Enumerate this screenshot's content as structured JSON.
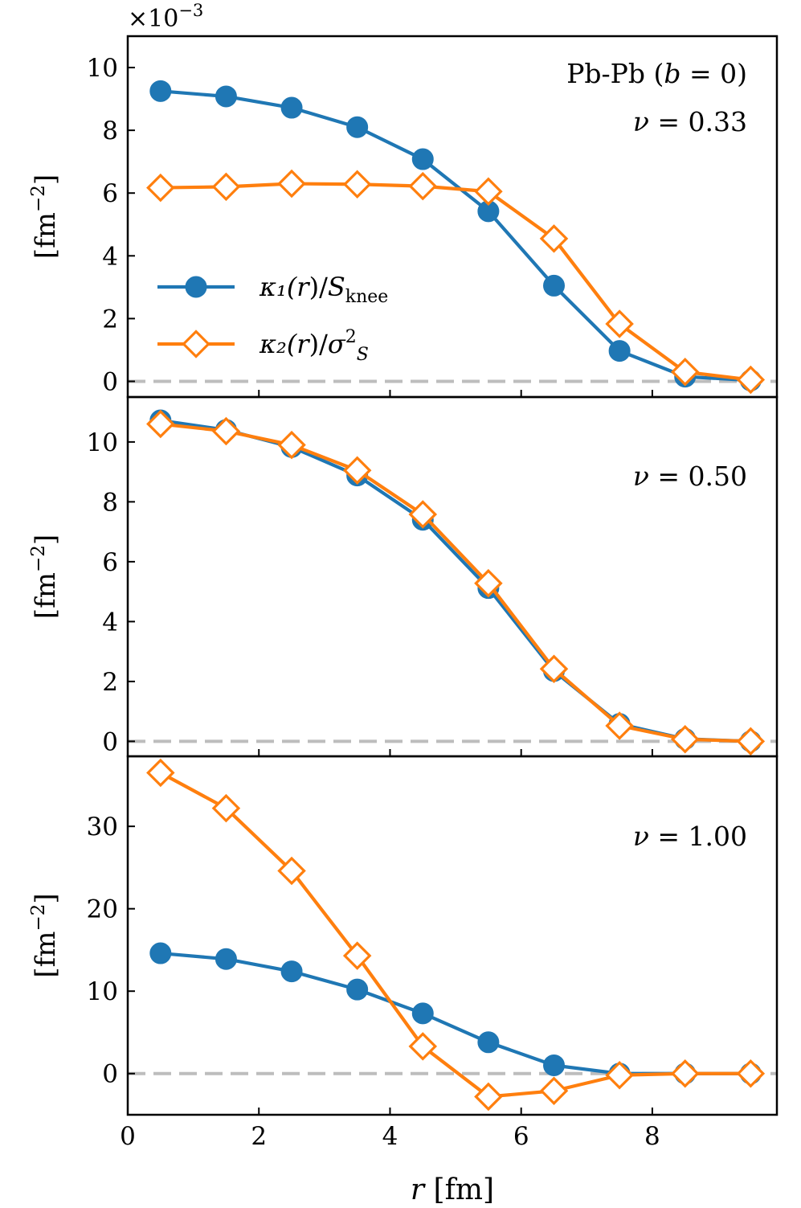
{
  "chart_data": {
    "type": "line",
    "xlabel": "r [fm]",
    "x_tick_labels": [
      "0",
      "2",
      "4",
      "6",
      "8"
    ],
    "xlim": [
      0,
      9.9
    ],
    "legend": {
      "placement": "center-left (top panel)",
      "entries": [
        {
          "series": "k1",
          "label": "κ₁(r)/S_knee"
        },
        {
          "series": "k2",
          "label": "κ₂(r)/σ²_S"
        }
      ]
    },
    "series_style": {
      "k1": {
        "color": "#1f77b4",
        "marker": "filled-circle"
      },
      "k2": {
        "color": "#ff7f0e",
        "marker": "open-diamond"
      }
    },
    "x": [
      0.5,
      1.5,
      2.5,
      3.5,
      4.5,
      5.5,
      6.5,
      7.5,
      8.5,
      9.5
    ],
    "panels": [
      {
        "name": "nu-033",
        "annotations": [
          "Pb-Pb (b = 0)",
          "ν = 0.33"
        ],
        "ylabel": "[fm⁻²]",
        "y_multiplier": "×10⁻³",
        "ylim": [
          -0.5,
          11.0
        ],
        "y_ticks": [
          0,
          2,
          4,
          6,
          8,
          10
        ],
        "y_tick_labels": [
          "0",
          "2",
          "4",
          "6",
          "8",
          "10"
        ],
        "zero_line": true,
        "series": [
          {
            "key": "k1",
            "values": [
              9.25,
              9.08,
              8.72,
              8.1,
              7.08,
              5.42,
              3.05,
              0.97,
              0.15,
              0.03
            ]
          },
          {
            "key": "k2",
            "values": [
              6.17,
              6.2,
              6.3,
              6.28,
              6.22,
              6.05,
              4.55,
              1.83,
              0.3,
              0.05
            ]
          }
        ]
      },
      {
        "name": "nu-050",
        "annotations": [
          "ν = 0.50"
        ],
        "ylabel": "[fm⁻²]",
        "ylim": [
          -0.5,
          11.5
        ],
        "y_ticks": [
          0,
          2,
          4,
          6,
          8,
          10
        ],
        "y_tick_labels": [
          "0",
          "2",
          "4",
          "6",
          "8",
          "10"
        ],
        "zero_line": true,
        "series": [
          {
            "key": "k1",
            "values": [
              10.72,
              10.4,
              9.83,
              8.88,
              7.4,
              5.12,
              2.35,
              0.58,
              0.08,
              0.0
            ]
          },
          {
            "key": "k2",
            "values": [
              10.6,
              10.36,
              9.9,
              9.05,
              7.58,
              5.28,
              2.42,
              0.52,
              0.07,
              0.0
            ]
          }
        ]
      },
      {
        "name": "nu-100",
        "annotations": [
          "ν = 1.00"
        ],
        "ylabel": "[fm⁻²]",
        "ylim": [
          -5,
          38.5
        ],
        "y_ticks": [
          0,
          10,
          20,
          30
        ],
        "y_tick_labels": [
          "0",
          "10",
          "20",
          "30"
        ],
        "zero_line": true,
        "series": [
          {
            "key": "k1",
            "values": [
              14.6,
              13.9,
              12.4,
              10.2,
              7.3,
              3.8,
              1.0,
              0.0,
              0.0,
              0.0
            ]
          },
          {
            "key": "k2",
            "values": [
              36.5,
              32.2,
              24.6,
              14.3,
              3.3,
              -2.8,
              -2.1,
              -0.2,
              0.0,
              0.0
            ]
          }
        ]
      }
    ]
  }
}
